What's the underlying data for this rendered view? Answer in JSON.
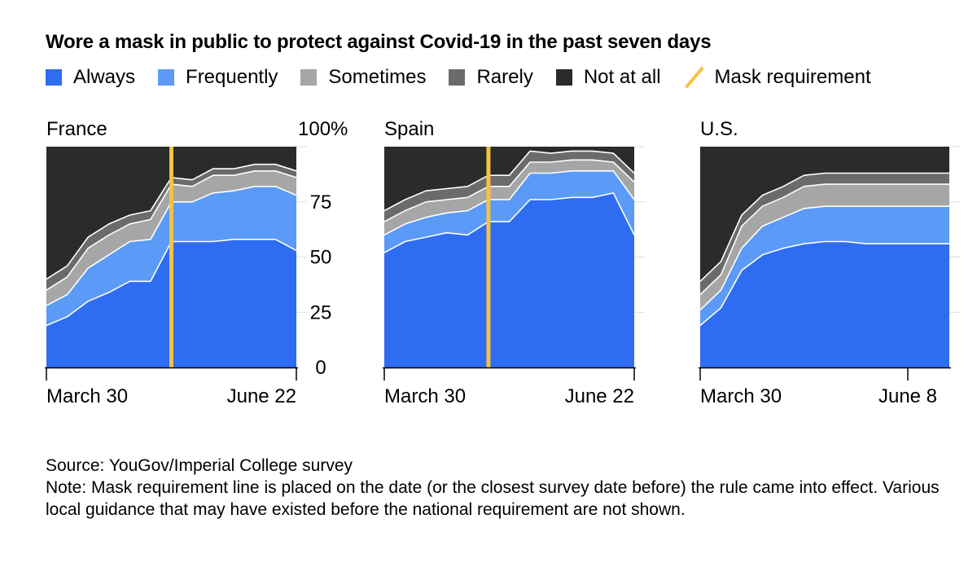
{
  "title": "Wore a mask in public to protect against Covid-19 in the past seven days",
  "legend": [
    {
      "key": "always",
      "label": "Always",
      "color": "#2e6cf2",
      "icon": "square-swatch"
    },
    {
      "key": "frequently",
      "label": "Frequently",
      "color": "#5b9af7",
      "icon": "square-swatch"
    },
    {
      "key": "sometimes",
      "label": "Sometimes",
      "color": "#a6a6a6",
      "icon": "square-swatch"
    },
    {
      "key": "rarely",
      "label": "Rarely",
      "color": "#6b6b6b",
      "icon": "square-swatch"
    },
    {
      "key": "not_at_all",
      "label": "Not at all",
      "color": "#2b2b2b",
      "icon": "square-swatch"
    },
    {
      "key": "mask_requirement",
      "label": "Mask requirement",
      "color": "#f5c242",
      "icon": "diagonal-line"
    }
  ],
  "footer": {
    "source": "Source: YouGov/Imperial College survey",
    "note": "Note: Mask requirement line is placed on the date (or the closest survey date before) the rule came into effect. Various local guidance that may have existed before the national requirement are not shown."
  },
  "chart_data": [
    {
      "type": "area",
      "stacked": true,
      "title": "France",
      "ylim": [
        0,
        100
      ],
      "yticks": [
        "0",
        "25",
        "50",
        "75",
        "100%"
      ],
      "xtick_labels": [
        {
          "label": "March 30",
          "at": 0
        },
        {
          "label": "June 22",
          "at": 12
        }
      ],
      "mask_requirement_at": 6,
      "x": [
        0,
        1,
        2,
        3,
        4,
        5,
        6,
        7,
        8,
        9,
        10,
        11,
        12
      ],
      "series": [
        {
          "name": "Always",
          "values": [
            19,
            23,
            30,
            34,
            39,
            39,
            57,
            57,
            57,
            58,
            58,
            58,
            53
          ]
        },
        {
          "name": "Frequently",
          "values": [
            9,
            10,
            15,
            17,
            18,
            19,
            18,
            18,
            22,
            22,
            24,
            24,
            25
          ]
        },
        {
          "name": "Sometimes",
          "values": [
            7,
            8,
            9,
            9,
            8,
            9,
            8,
            7,
            8,
            7,
            7,
            7,
            8
          ]
        },
        {
          "name": "Rarely",
          "values": [
            5,
            5,
            5,
            5,
            4,
            4,
            3,
            3,
            3,
            3,
            3,
            3,
            3
          ]
        },
        {
          "name": "Not at all",
          "values": [
            60,
            54,
            41,
            35,
            31,
            29,
            14,
            15,
            10,
            10,
            8,
            8,
            11
          ]
        }
      ]
    },
    {
      "type": "area",
      "stacked": true,
      "title": "Spain",
      "ylim": [
        0,
        100
      ],
      "xtick_labels": [
        {
          "label": "March 30",
          "at": 0
        },
        {
          "label": "June 22",
          "at": 12
        }
      ],
      "mask_requirement_at": 5,
      "x": [
        0,
        1,
        2,
        3,
        4,
        5,
        6,
        7,
        8,
        9,
        10,
        11,
        12
      ],
      "series": [
        {
          "name": "Always",
          "values": [
            52,
            57,
            59,
            61,
            60,
            66,
            66,
            76,
            76,
            77,
            77,
            79,
            60
          ]
        },
        {
          "name": "Frequently",
          "values": [
            8,
            8,
            9,
            9,
            11,
            10,
            10,
            12,
            12,
            12,
            12,
            10,
            16
          ]
        },
        {
          "name": "Sometimes",
          "values": [
            6,
            6,
            7,
            6,
            6,
            6,
            6,
            5,
            5,
            5,
            5,
            4,
            8
          ]
        },
        {
          "name": "Rarely",
          "values": [
            5,
            5,
            5,
            5,
            5,
            5,
            5,
            5,
            4,
            4,
            4,
            4,
            4
          ]
        },
        {
          "name": "Not at all",
          "values": [
            29,
            24,
            20,
            19,
            18,
            13,
            13,
            2,
            3,
            2,
            2,
            3,
            12
          ]
        }
      ]
    },
    {
      "type": "area",
      "stacked": true,
      "title": "U.S.",
      "ylim": [
        0,
        100
      ],
      "xtick_labels": [
        {
          "label": "March 30",
          "at": 0
        },
        {
          "label": "June 8",
          "at": 10
        }
      ],
      "mask_requirement_at": null,
      "x": [
        0,
        1,
        2,
        3,
        4,
        5,
        6,
        7,
        8,
        9,
        10,
        11,
        12
      ],
      "series": [
        {
          "name": "Always",
          "values": [
            19,
            27,
            44,
            51,
            54,
            56,
            57,
            57,
            56,
            56,
            56,
            56,
            56
          ]
        },
        {
          "name": "Frequently",
          "values": [
            7,
            8,
            10,
            13,
            14,
            16,
            16,
            16,
            17,
            17,
            17,
            17,
            17
          ]
        },
        {
          "name": "Sometimes",
          "values": [
            7,
            7,
            10,
            9,
            9,
            10,
            10,
            10,
            10,
            10,
            10,
            10,
            10
          ]
        },
        {
          "name": "Rarely",
          "values": [
            6,
            6,
            5,
            5,
            5,
            5,
            5,
            5,
            5,
            5,
            5,
            5,
            5
          ]
        },
        {
          "name": "Not at all",
          "values": [
            61,
            52,
            31,
            22,
            18,
            13,
            12,
            12,
            12,
            12,
            12,
            12,
            12
          ]
        }
      ]
    }
  ]
}
